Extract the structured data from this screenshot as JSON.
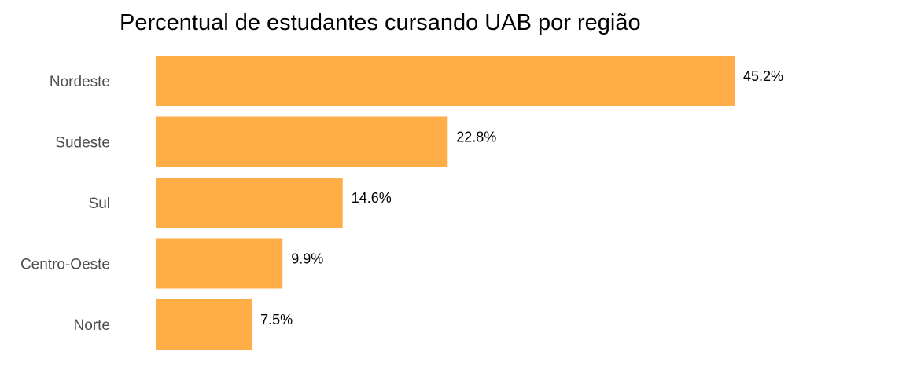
{
  "chart_data": {
    "type": "bar",
    "orientation": "horizontal",
    "title": "Percentual de estudantes cursando UAB por região",
    "categories": [
      "Nordeste",
      "Sudeste",
      "Sul",
      "Centro-Oeste",
      "Norte"
    ],
    "values": [
      45.2,
      22.8,
      14.6,
      9.9,
      7.5
    ],
    "value_labels": [
      "45.2%",
      "22.8%",
      "14.6%",
      "9.9%",
      "7.5%"
    ],
    "xlim": [
      0,
      45.2
    ],
    "grid": false,
    "legend": "none",
    "bar_color": "#ffad47"
  }
}
